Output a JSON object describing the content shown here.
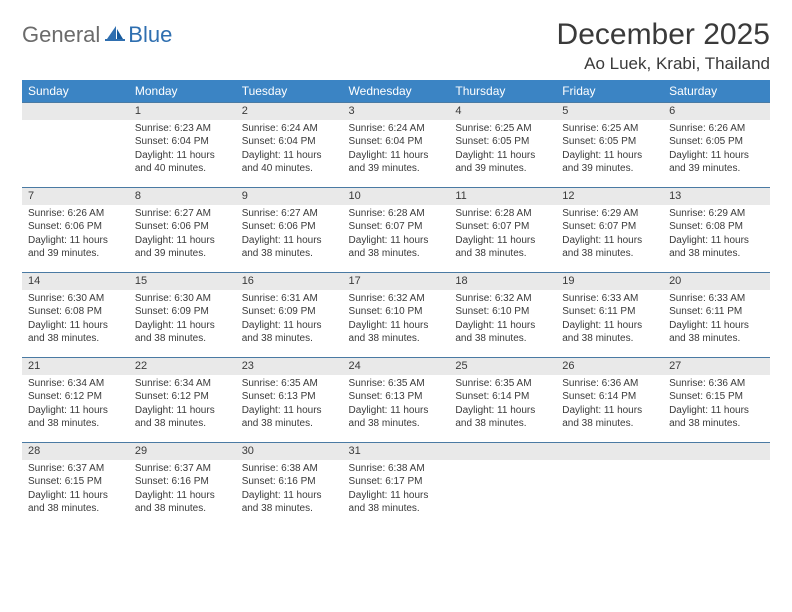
{
  "brand": {
    "part1": "General",
    "part2": "Blue"
  },
  "title": "December 2025",
  "location": "Ao Luek, Krabi, Thailand",
  "colors": {
    "header_bg": "#3b84c4",
    "header_text": "#ffffff",
    "num_row_bg": "#e9e9e9",
    "row_border": "#4a7aa3",
    "text": "#3a3a3a",
    "logo_gray": "#6b6b6b",
    "logo_blue": "#2f6fb0",
    "page_bg": "#ffffff"
  },
  "fonts": {
    "title_size": 30,
    "location_size": 17,
    "dayhead_size": 12,
    "daynum_size": 11,
    "body_size": 10
  },
  "dayNames": [
    "Sunday",
    "Monday",
    "Tuesday",
    "Wednesday",
    "Thursday",
    "Friday",
    "Saturday"
  ],
  "weeks": [
    [
      null,
      {
        "n": "1",
        "sr": "Sunrise: 6:23 AM",
        "ss": "Sunset: 6:04 PM",
        "d1": "Daylight: 11 hours",
        "d2": "and 40 minutes."
      },
      {
        "n": "2",
        "sr": "Sunrise: 6:24 AM",
        "ss": "Sunset: 6:04 PM",
        "d1": "Daylight: 11 hours",
        "d2": "and 40 minutes."
      },
      {
        "n": "3",
        "sr": "Sunrise: 6:24 AM",
        "ss": "Sunset: 6:04 PM",
        "d1": "Daylight: 11 hours",
        "d2": "and 39 minutes."
      },
      {
        "n": "4",
        "sr": "Sunrise: 6:25 AM",
        "ss": "Sunset: 6:05 PM",
        "d1": "Daylight: 11 hours",
        "d2": "and 39 minutes."
      },
      {
        "n": "5",
        "sr": "Sunrise: 6:25 AM",
        "ss": "Sunset: 6:05 PM",
        "d1": "Daylight: 11 hours",
        "d2": "and 39 minutes."
      },
      {
        "n": "6",
        "sr": "Sunrise: 6:26 AM",
        "ss": "Sunset: 6:05 PM",
        "d1": "Daylight: 11 hours",
        "d2": "and 39 minutes."
      }
    ],
    [
      {
        "n": "7",
        "sr": "Sunrise: 6:26 AM",
        "ss": "Sunset: 6:06 PM",
        "d1": "Daylight: 11 hours",
        "d2": "and 39 minutes."
      },
      {
        "n": "8",
        "sr": "Sunrise: 6:27 AM",
        "ss": "Sunset: 6:06 PM",
        "d1": "Daylight: 11 hours",
        "d2": "and 39 minutes."
      },
      {
        "n": "9",
        "sr": "Sunrise: 6:27 AM",
        "ss": "Sunset: 6:06 PM",
        "d1": "Daylight: 11 hours",
        "d2": "and 38 minutes."
      },
      {
        "n": "10",
        "sr": "Sunrise: 6:28 AM",
        "ss": "Sunset: 6:07 PM",
        "d1": "Daylight: 11 hours",
        "d2": "and 38 minutes."
      },
      {
        "n": "11",
        "sr": "Sunrise: 6:28 AM",
        "ss": "Sunset: 6:07 PM",
        "d1": "Daylight: 11 hours",
        "d2": "and 38 minutes."
      },
      {
        "n": "12",
        "sr": "Sunrise: 6:29 AM",
        "ss": "Sunset: 6:07 PM",
        "d1": "Daylight: 11 hours",
        "d2": "and 38 minutes."
      },
      {
        "n": "13",
        "sr": "Sunrise: 6:29 AM",
        "ss": "Sunset: 6:08 PM",
        "d1": "Daylight: 11 hours",
        "d2": "and 38 minutes."
      }
    ],
    [
      {
        "n": "14",
        "sr": "Sunrise: 6:30 AM",
        "ss": "Sunset: 6:08 PM",
        "d1": "Daylight: 11 hours",
        "d2": "and 38 minutes."
      },
      {
        "n": "15",
        "sr": "Sunrise: 6:30 AM",
        "ss": "Sunset: 6:09 PM",
        "d1": "Daylight: 11 hours",
        "d2": "and 38 minutes."
      },
      {
        "n": "16",
        "sr": "Sunrise: 6:31 AM",
        "ss": "Sunset: 6:09 PM",
        "d1": "Daylight: 11 hours",
        "d2": "and 38 minutes."
      },
      {
        "n": "17",
        "sr": "Sunrise: 6:32 AM",
        "ss": "Sunset: 6:10 PM",
        "d1": "Daylight: 11 hours",
        "d2": "and 38 minutes."
      },
      {
        "n": "18",
        "sr": "Sunrise: 6:32 AM",
        "ss": "Sunset: 6:10 PM",
        "d1": "Daylight: 11 hours",
        "d2": "and 38 minutes."
      },
      {
        "n": "19",
        "sr": "Sunrise: 6:33 AM",
        "ss": "Sunset: 6:11 PM",
        "d1": "Daylight: 11 hours",
        "d2": "and 38 minutes."
      },
      {
        "n": "20",
        "sr": "Sunrise: 6:33 AM",
        "ss": "Sunset: 6:11 PM",
        "d1": "Daylight: 11 hours",
        "d2": "and 38 minutes."
      }
    ],
    [
      {
        "n": "21",
        "sr": "Sunrise: 6:34 AM",
        "ss": "Sunset: 6:12 PM",
        "d1": "Daylight: 11 hours",
        "d2": "and 38 minutes."
      },
      {
        "n": "22",
        "sr": "Sunrise: 6:34 AM",
        "ss": "Sunset: 6:12 PM",
        "d1": "Daylight: 11 hours",
        "d2": "and 38 minutes."
      },
      {
        "n": "23",
        "sr": "Sunrise: 6:35 AM",
        "ss": "Sunset: 6:13 PM",
        "d1": "Daylight: 11 hours",
        "d2": "and 38 minutes."
      },
      {
        "n": "24",
        "sr": "Sunrise: 6:35 AM",
        "ss": "Sunset: 6:13 PM",
        "d1": "Daylight: 11 hours",
        "d2": "and 38 minutes."
      },
      {
        "n": "25",
        "sr": "Sunrise: 6:35 AM",
        "ss": "Sunset: 6:14 PM",
        "d1": "Daylight: 11 hours",
        "d2": "and 38 minutes."
      },
      {
        "n": "26",
        "sr": "Sunrise: 6:36 AM",
        "ss": "Sunset: 6:14 PM",
        "d1": "Daylight: 11 hours",
        "d2": "and 38 minutes."
      },
      {
        "n": "27",
        "sr": "Sunrise: 6:36 AM",
        "ss": "Sunset: 6:15 PM",
        "d1": "Daylight: 11 hours",
        "d2": "and 38 minutes."
      }
    ],
    [
      {
        "n": "28",
        "sr": "Sunrise: 6:37 AM",
        "ss": "Sunset: 6:15 PM",
        "d1": "Daylight: 11 hours",
        "d2": "and 38 minutes."
      },
      {
        "n": "29",
        "sr": "Sunrise: 6:37 AM",
        "ss": "Sunset: 6:16 PM",
        "d1": "Daylight: 11 hours",
        "d2": "and 38 minutes."
      },
      {
        "n": "30",
        "sr": "Sunrise: 6:38 AM",
        "ss": "Sunset: 6:16 PM",
        "d1": "Daylight: 11 hours",
        "d2": "and 38 minutes."
      },
      {
        "n": "31",
        "sr": "Sunrise: 6:38 AM",
        "ss": "Sunset: 6:17 PM",
        "d1": "Daylight: 11 hours",
        "d2": "and 38 minutes."
      },
      null,
      null,
      null
    ]
  ]
}
